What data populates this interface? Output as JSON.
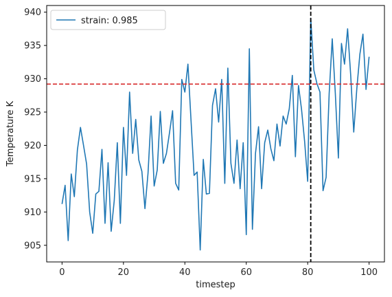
{
  "chart_data": {
    "type": "line",
    "xlabel": "timestep",
    "ylabel": "Temperature K",
    "xlim": [
      -5,
      105
    ],
    "ylim": [
      902.5,
      941
    ],
    "xticks": [
      0,
      20,
      40,
      60,
      80,
      100
    ],
    "yticks": [
      905,
      910,
      915,
      920,
      925,
      930,
      935,
      940
    ],
    "legend_position": "top-left",
    "grid": false,
    "series": [
      {
        "name": "strain: 0.985",
        "color": "#1f77b4",
        "x": [
          0,
          1,
          2,
          3,
          4,
          5,
          6,
          7,
          8,
          9,
          10,
          11,
          12,
          13,
          14,
          15,
          16,
          17,
          18,
          19,
          20,
          21,
          22,
          23,
          24,
          25,
          26,
          27,
          28,
          29,
          30,
          31,
          32,
          33,
          34,
          35,
          36,
          37,
          38,
          39,
          40,
          41,
          42,
          43,
          44,
          45,
          46,
          47,
          48,
          49,
          50,
          51,
          52,
          53,
          54,
          55,
          56,
          57,
          58,
          59,
          60,
          61,
          62,
          63,
          64,
          65,
          66,
          67,
          68,
          69,
          70,
          71,
          72,
          73,
          74,
          75,
          76,
          77,
          78,
          79,
          80,
          81,
          82,
          83,
          84,
          85,
          86,
          87,
          88,
          89,
          90,
          91,
          92,
          93,
          94,
          95,
          96,
          97,
          98,
          99,
          100
        ],
        "values": [
          911.2,
          914.0,
          905.7,
          915.7,
          912.3,
          919.3,
          922.7,
          920.0,
          917.2,
          910.0,
          906.8,
          912.7,
          913.1,
          919.4,
          908.3,
          917.4,
          907.1,
          911.7,
          920.4,
          908.3,
          922.7,
          915.5,
          928.0,
          918.8,
          923.9,
          917.8,
          916.1,
          910.5,
          915.8,
          924.4,
          913.9,
          916.3,
          925.1,
          917.3,
          918.8,
          921.9,
          925.2,
          914.3,
          913.3,
          929.9,
          928.0,
          932.2,
          923.8,
          915.5,
          916.0,
          904.3,
          917.9,
          912.7,
          912.8,
          926.0,
          928.5,
          923.5,
          929.9,
          914.3,
          931.6,
          917.3,
          914.3,
          920.8,
          913.5,
          920.4,
          906.6,
          934.5,
          907.4,
          918.8,
          922.8,
          913.5,
          920.4,
          922.3,
          919.5,
          917.7,
          923.2,
          919.9,
          924.4,
          923.2,
          925.5,
          930.5,
          918.3,
          929.0,
          925.4,
          920.6,
          914.6,
          939.1,
          931.3,
          929.3,
          928.0,
          913.2,
          915.2,
          927.8,
          936.0,
          927.8,
          918.1,
          935.3,
          932.2,
          937.5,
          930.6,
          922.0,
          928.5,
          933.7,
          936.7,
          928.4,
          933.3
        ]
      }
    ],
    "reference_lines": [
      {
        "orientation": "horizontal",
        "value": 929.2,
        "color": "#d62728",
        "style": "dashed"
      },
      {
        "orientation": "vertical",
        "value": 81,
        "color": "#000000",
        "style": "dashed"
      }
    ]
  }
}
